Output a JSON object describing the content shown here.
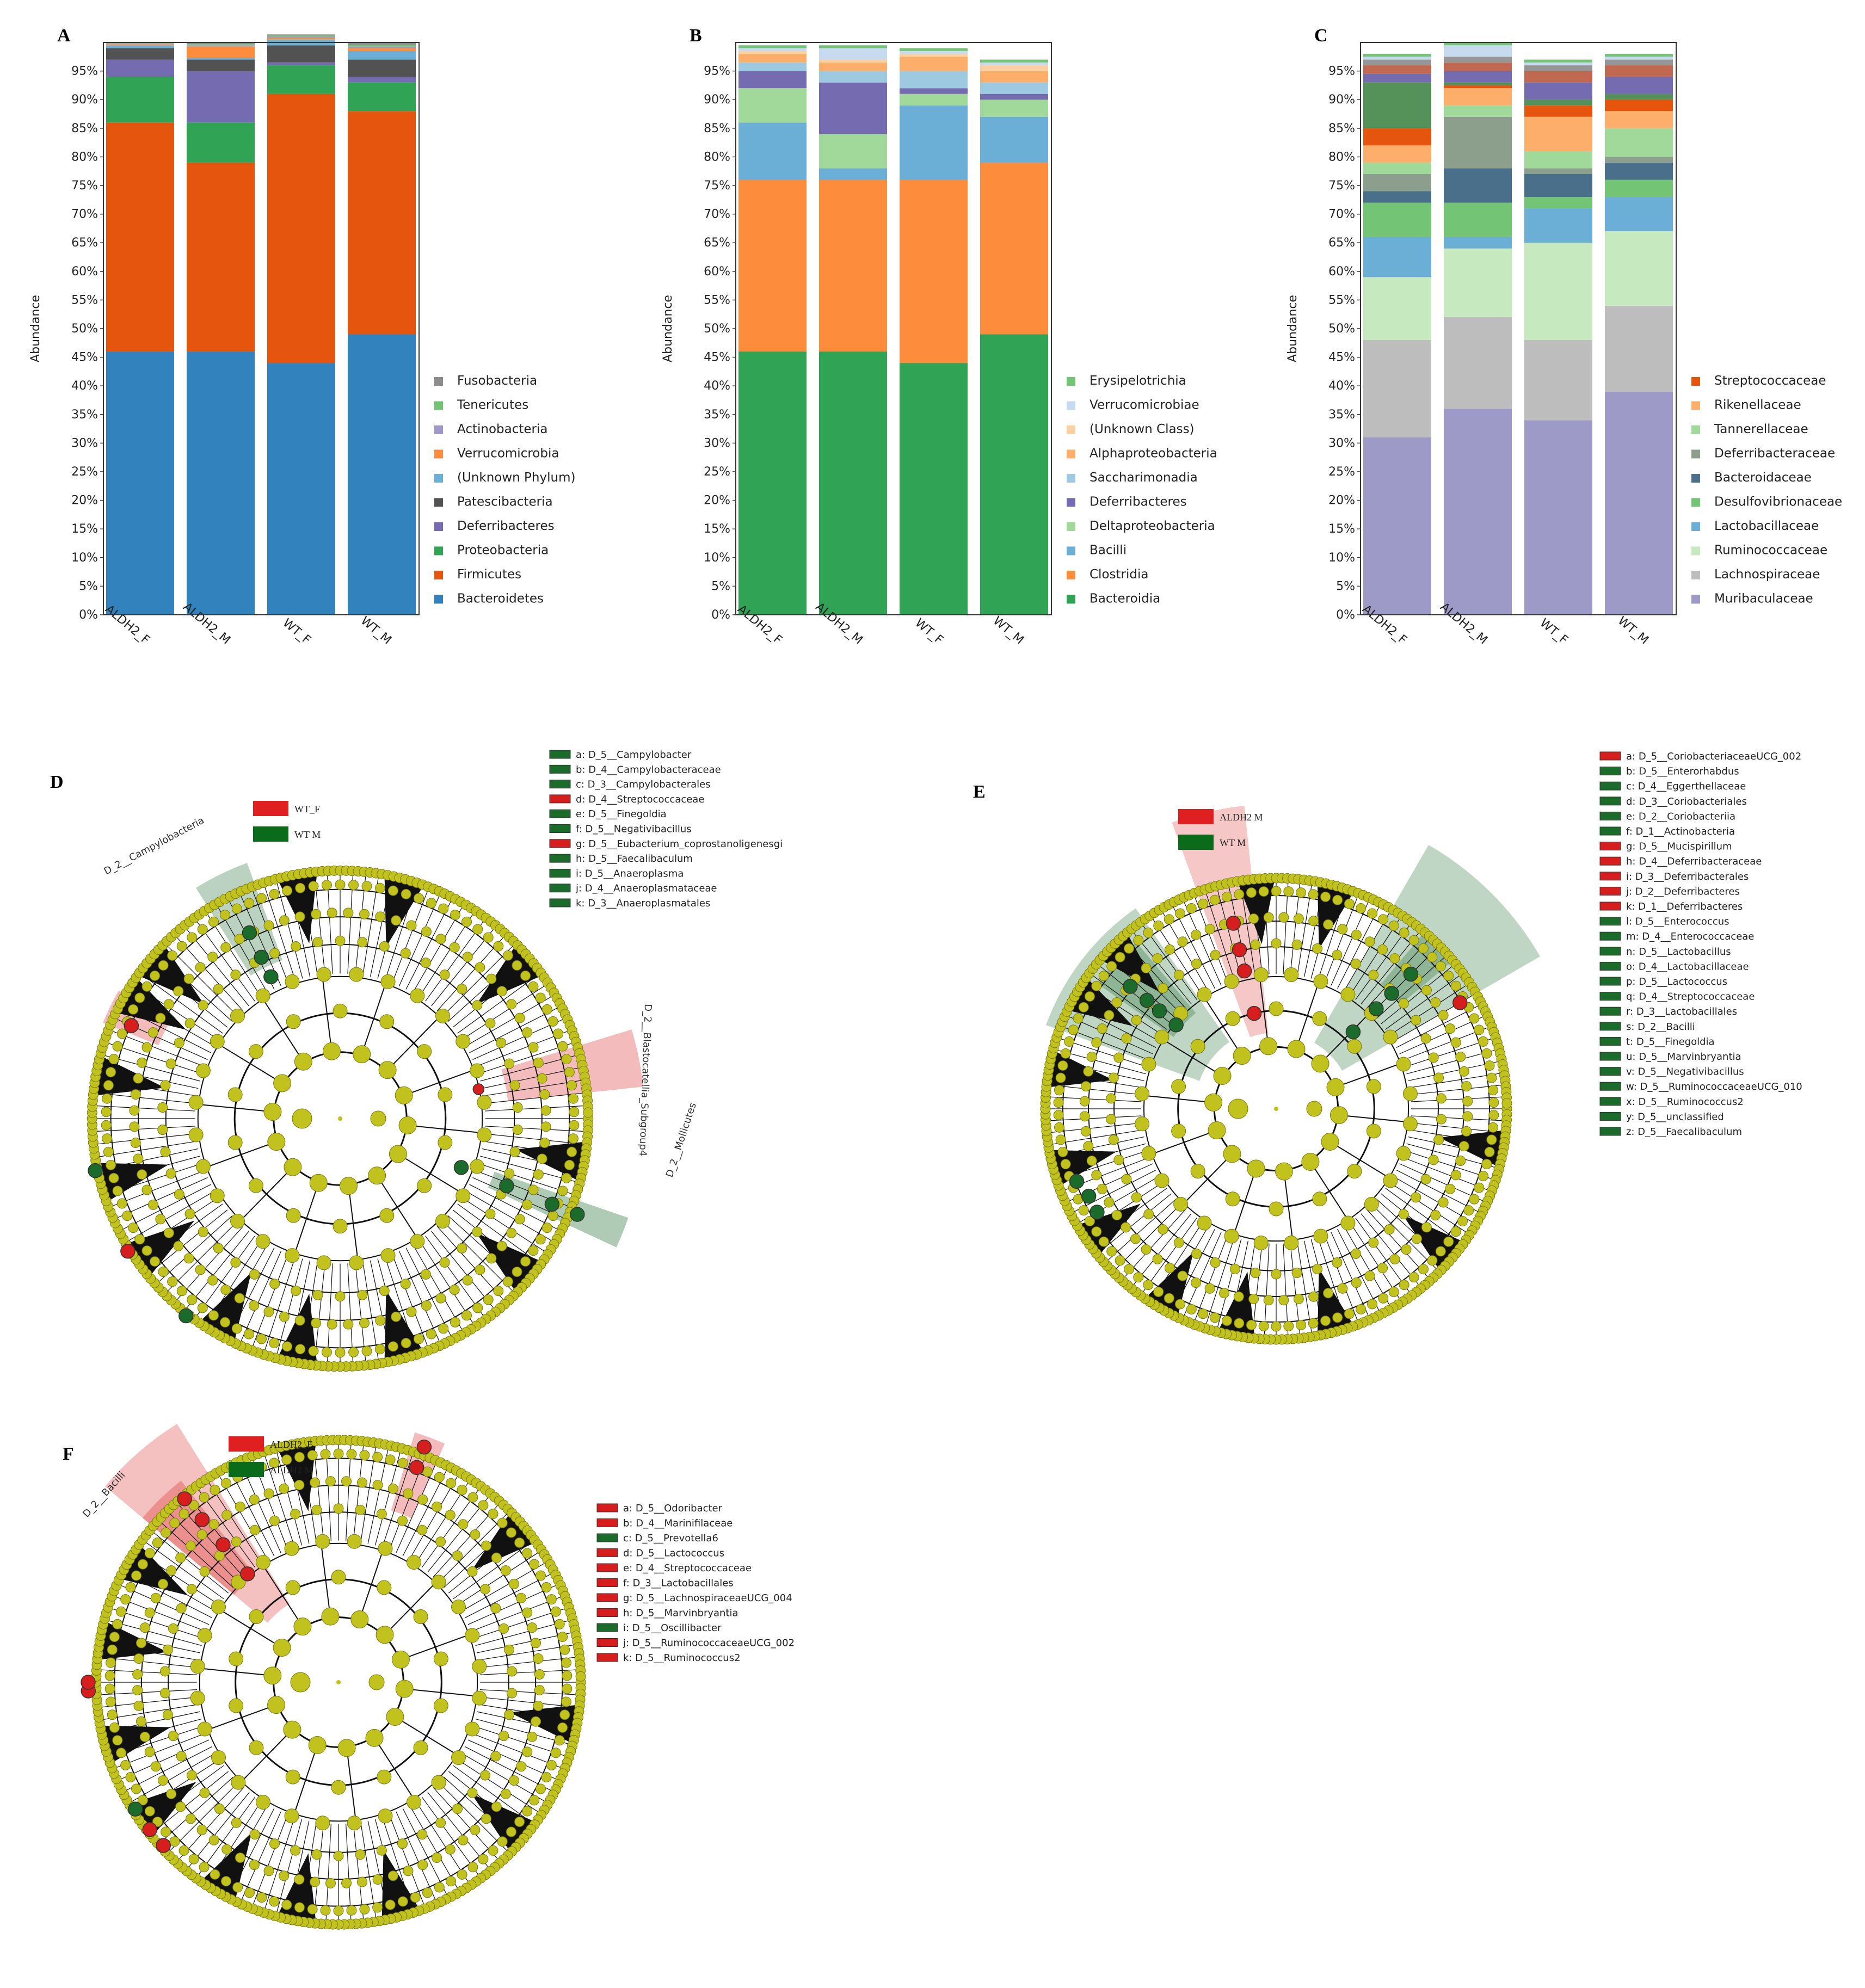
{
  "bar_panels": [
    {
      "letter": "A",
      "x0": 190,
      "ylabel": "Abundance",
      "categories": [
        "ALDH2_F",
        "ALDH2_M",
        "WT_F",
        "WT_M"
      ],
      "legend": [
        {
          "name": "Fusobacteria",
          "color": "#8c8c8c"
        },
        {
          "name": "Tenericutes",
          "color": "#74c476"
        },
        {
          "name": "Actinobacteria",
          "color": "#9e9ac8"
        },
        {
          "name": "Verrucomicrobia",
          "color": "#fd8d3c"
        },
        {
          "name": "(Unknown Phylum)",
          "color": "#6baed6"
        },
        {
          "name": "Patescibacteria",
          "color": "#525252"
        },
        {
          "name": "Deferribacteres",
          "color": "#756bb1"
        },
        {
          "name": "Proteobacteria",
          "color": "#31a354"
        },
        {
          "name": "Firmicutes",
          "color": "#e6550d"
        },
        {
          "name": "Bacteroidetes",
          "color": "#3182bd"
        }
      ],
      "stack": [
        {
          "color": "#3182bd",
          "values": [
            46,
            46,
            44,
            49
          ]
        },
        {
          "color": "#e6550d",
          "values": [
            40,
            33,
            47,
            39
          ]
        },
        {
          "color": "#31a354",
          "values": [
            8,
            7,
            5,
            5
          ]
        },
        {
          "color": "#756bb1",
          "values": [
            3,
            9,
            0.5,
            1
          ]
        },
        {
          "color": "#525252",
          "values": [
            2,
            2,
            3,
            3
          ]
        },
        {
          "color": "#6baed6",
          "values": [
            0.5,
            0.3,
            1,
            1.5
          ]
        },
        {
          "color": "#fd8d3c",
          "values": [
            0.2,
            2,
            0.3,
            0.5
          ]
        },
        {
          "color": "#9e9ac8",
          "values": [
            0.1,
            0.2,
            0.2,
            0.3
          ]
        },
        {
          "color": "#74c476",
          "values": [
            0.1,
            0.2,
            0.2,
            0.3
          ]
        },
        {
          "color": "#8c8c8c",
          "values": [
            0.1,
            0.3,
            0.2,
            0.4
          ]
        }
      ]
    },
    {
      "letter": "B",
      "x0": 1352,
      "ylabel": "Abundance",
      "categories": [
        "ALDH2_F",
        "ALDH2_M",
        "WT_F",
        "WT_M"
      ],
      "legend": [
        {
          "name": "Erysipelotrichia",
          "color": "#74c476"
        },
        {
          "name": "Verrucomicrobiae",
          "color": "#c6dbef"
        },
        {
          "name": "(Unknown Class)",
          "color": "#fdd0a2"
        },
        {
          "name": "Alphaproteobacteria",
          "color": "#fdae6b"
        },
        {
          "name": "Saccharimonadia",
          "color": "#9ecae1"
        },
        {
          "name": "Deferribacteres",
          "color": "#756bb1"
        },
        {
          "name": "Deltaproteobacteria",
          "color": "#a1d99b"
        },
        {
          "name": "Bacilli",
          "color": "#6baed6"
        },
        {
          "name": "Clostridia",
          "color": "#fd8d3c"
        },
        {
          "name": "Bacteroidia",
          "color": "#31a354"
        }
      ],
      "stack": [
        {
          "color": "#31a354",
          "values": [
            46,
            46,
            44,
            49
          ]
        },
        {
          "color": "#fd8d3c",
          "values": [
            30,
            30,
            32,
            30
          ]
        },
        {
          "color": "#6baed6",
          "values": [
            10,
            2,
            13,
            8
          ]
        },
        {
          "color": "#a1d99b",
          "values": [
            6,
            6,
            2,
            3
          ]
        },
        {
          "color": "#756bb1",
          "values": [
            3,
            9,
            1,
            1
          ]
        },
        {
          "color": "#9ecae1",
          "values": [
            1.5,
            2,
            3,
            2
          ]
        },
        {
          "color": "#fdae6b",
          "values": [
            1.5,
            1.5,
            2.5,
            2
          ]
        },
        {
          "color": "#fdd0a2",
          "values": [
            0.5,
            0.5,
            0.5,
            1
          ]
        },
        {
          "color": "#c6dbef",
          "values": [
            0.5,
            2,
            0.5,
            0.5
          ]
        },
        {
          "color": "#74c476",
          "values": [
            0.5,
            0.5,
            0.5,
            0.5
          ]
        }
      ]
    },
    {
      "letter": "C",
      "x0": 2500,
      "ylabel": "Abundance",
      "categories": [
        "ALDH2_F",
        "ALDH2_M",
        "WT_F",
        "WT_M"
      ],
      "legend": [
        {
          "name": "Streptococcaceae",
          "color": "#e6550d"
        },
        {
          "name": "Rikenellaceae",
          "color": "#fdae6b"
        },
        {
          "name": "Tannerellaceae",
          "color": "#a1d99b"
        },
        {
          "name": "Deferribacteraceae",
          "color": "#8c9e8c"
        },
        {
          "name": "Bacteroidaceae",
          "color": "#4a6f8a"
        },
        {
          "name": "Desulfovibrionaceae",
          "color": "#74c476"
        },
        {
          "name": "Lactobacillaceae",
          "color": "#6baed6"
        },
        {
          "name": "Ruminococcaceae",
          "color": "#c7e9c0"
        },
        {
          "name": "Lachnospiraceae",
          "color": "#bdbdbd"
        },
        {
          "name": "Muribaculaceae",
          "color": "#9e9ac8"
        }
      ],
      "stack": [
        {
          "color": "#9e9ac8",
          "values": [
            31,
            36,
            34,
            39
          ]
        },
        {
          "color": "#bdbdbd",
          "values": [
            17,
            16,
            14,
            15
          ]
        },
        {
          "color": "#c7e9c0",
          "values": [
            11,
            12,
            17,
            13
          ]
        },
        {
          "color": "#6baed6",
          "values": [
            7,
            2,
            6,
            6
          ]
        },
        {
          "color": "#74c476",
          "values": [
            6,
            6,
            2,
            3
          ]
        },
        {
          "color": "#4a6f8a",
          "values": [
            2,
            6,
            4,
            3
          ]
        },
        {
          "color": "#8c9e8c",
          "values": [
            3,
            9,
            1,
            1
          ]
        },
        {
          "color": "#a1d99b",
          "values": [
            2,
            2,
            3,
            5
          ]
        },
        {
          "color": "#fdae6b",
          "values": [
            3,
            3,
            6,
            3
          ]
        },
        {
          "color": "#e6550d",
          "values": [
            3,
            0.5,
            2,
            2
          ]
        },
        {
          "color": "#54925a",
          "values": [
            8,
            0.5,
            1,
            1
          ]
        },
        {
          "color": "#756bb1",
          "values": [
            1.5,
            2,
            3,
            3
          ]
        },
        {
          "color": "#c06850",
          "values": [
            1.5,
            1.5,
            2,
            2
          ]
        },
        {
          "color": "#969696",
          "values": [
            1,
            1,
            1,
            1
          ]
        },
        {
          "color": "#c6dbef",
          "values": [
            0.5,
            2,
            0.5,
            0.5
          ]
        },
        {
          "color": "#74c476",
          "values": [
            0.5,
            0.5,
            0.5,
            0.5
          ]
        }
      ]
    }
  ],
  "y_ticks": [
    "0%",
    "5%",
    "10%",
    "15%",
    "20%",
    "25%",
    "30%",
    "35%",
    "40%",
    "45%",
    "50%",
    "55%",
    "60%",
    "65%",
    "70%",
    "75%",
    "80%",
    "85%",
    "90%",
    "95%"
  ],
  "cladograms": [
    {
      "letter": "D",
      "groups": [
        {
          "name": "WT_F",
          "color": "#e02020"
        },
        {
          "name": "WT M",
          "color": "#0a6b1a"
        }
      ],
      "legend": [
        {
          "text": "a: D_5__Campylobacter",
          "color": "green"
        },
        {
          "text": "b: D_4__Campylobacteraceae",
          "color": "green"
        },
        {
          "text": "c: D_3__Campylobacterales",
          "color": "green"
        },
        {
          "text": "d: D_4__Streptococcaceae",
          "color": "red"
        },
        {
          "text": "e: D_5__Finegoldia",
          "color": "green"
        },
        {
          "text": "f: D_5__Negativibacillus",
          "color": "green"
        },
        {
          "text": "g: D_5__Eubacterium_coprostanoligenesgi",
          "color": "red"
        },
        {
          "text": "h: D_5__Faecalibaculum",
          "color": "green"
        },
        {
          "text": "i: D_5__Anaeroplasma",
          "color": "green"
        },
        {
          "text": "j: D_4__Anaeroplasmataceae",
          "color": "green"
        },
        {
          "text": "k: D_3__Anaeroplasmatales",
          "color": "green"
        }
      ],
      "labels": [
        "D_2__Campylobacteria",
        "D_2__Blastocatellia_Subgroup4",
        "D_2__Mollicutes"
      ]
    },
    {
      "letter": "E",
      "groups": [
        {
          "name": "ALDH2 M",
          "color": "#e02020"
        },
        {
          "name": "WT M",
          "color": "#0a6b1a"
        }
      ],
      "legend": [
        {
          "text": "a: D_5__CoriobacteriaceaeUCG_002",
          "color": "red"
        },
        {
          "text": "b: D_5__Enterorhabdus",
          "color": "green"
        },
        {
          "text": "c: D_4__Eggerthellaceae",
          "color": "green"
        },
        {
          "text": "d: D_3__Coriobacteriales",
          "color": "green"
        },
        {
          "text": "e: D_2__Coriobacteriia",
          "color": "green"
        },
        {
          "text": "f: D_1__Actinobacteria",
          "color": "green"
        },
        {
          "text": "g: D_5__Mucispirillum",
          "color": "red"
        },
        {
          "text": "h: D_4__Deferribacteraceae",
          "color": "red"
        },
        {
          "text": "i: D_3__Deferribacterales",
          "color": "red"
        },
        {
          "text": "j: D_2__Deferribacteres",
          "color": "red"
        },
        {
          "text": "k: D_1__Deferribacteres",
          "color": "red"
        },
        {
          "text": "l: D_5__Enterococcus",
          "color": "green"
        },
        {
          "text": "m: D_4__Enterococcaceae",
          "color": "green"
        },
        {
          "text": "n: D_5__Lactobacillus",
          "color": "green"
        },
        {
          "text": "o: D_4__Lactobacillaceae",
          "color": "green"
        },
        {
          "text": "p: D_5__Lactococcus",
          "color": "green"
        },
        {
          "text": "q: D_4__Streptococcaceae",
          "color": "green"
        },
        {
          "text": "r: D_3__Lactobacillales",
          "color": "green"
        },
        {
          "text": "s: D_2__Bacilli",
          "color": "green"
        },
        {
          "text": "t: D_5__Finegoldia",
          "color": "green"
        },
        {
          "text": "u: D_5__Marvinbryantia",
          "color": "green"
        },
        {
          "text": "v: D_5__Negativibacillus",
          "color": "green"
        },
        {
          "text": "w: D_5__RuminococcaceaeUCG_010",
          "color": "green"
        },
        {
          "text": "x: D_5__Ruminococcus2",
          "color": "green"
        },
        {
          "text": "y: D_5__unclassified",
          "color": "green"
        },
        {
          "text": "z: D_5__Faecalibaculum",
          "color": "green"
        }
      ],
      "labels": []
    },
    {
      "letter": "F",
      "groups": [
        {
          "name": "ALDH2_F",
          "color": "#e02020"
        },
        {
          "name": "ALDH2 M",
          "color": "#0a6b1a"
        }
      ],
      "legend": [
        {
          "text": "a: D_5__Odoribacter",
          "color": "red"
        },
        {
          "text": "b: D_4__Marinifilaceae",
          "color": "red"
        },
        {
          "text": "c: D_5__Prevotella6",
          "color": "green"
        },
        {
          "text": "d: D_5__Lactococcus",
          "color": "red"
        },
        {
          "text": "e: D_4__Streptococcaceae",
          "color": "red"
        },
        {
          "text": "f: D_3__Lactobacillales",
          "color": "red"
        },
        {
          "text": "g: D_5__LachnospiraceaeUCG_004",
          "color": "red"
        },
        {
          "text": "h: D_5__Marvinbryantia",
          "color": "red"
        },
        {
          "text": "i: D_5__Oscillibacter",
          "color": "green"
        },
        {
          "text": "j: D_5__RuminococcaceaeUCG_002",
          "color": "red"
        },
        {
          "text": "k: D_5__Ruminococcus2",
          "color": "red"
        }
      ],
      "labels": [
        "D_2__Bacilli"
      ]
    }
  ]
}
